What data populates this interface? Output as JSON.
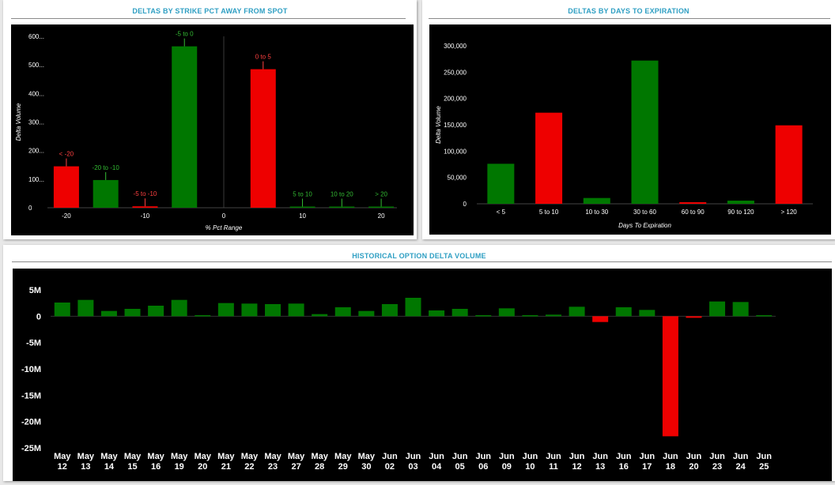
{
  "colors": {
    "positive": "#007700",
    "negative": "#ee0000",
    "title": "#2f9fc3",
    "background": "#000000",
    "axis_text": "#ffffff"
  },
  "panels": {
    "strike": {
      "title": "DELTAS BY STRIKE PCT AWAY FROM SPOT"
    },
    "days": {
      "title": "DELTAS BY DAYS TO EXPIRATION"
    },
    "history": {
      "title": "HISTORICAL OPTION DELTA VOLUME"
    }
  },
  "chart_data": [
    {
      "id": "strike",
      "type": "bar",
      "title": "DELTAS BY STRIKE PCT AWAY FROM SPOT",
      "xlabel": "% Pct Range",
      "ylabel": "Delta Volume",
      "xlim": [
        -22,
        22
      ],
      "ylim": [
        0,
        600
      ],
      "yticks": [
        0,
        100,
        200,
        300,
        400,
        500,
        600
      ],
      "ytick_labels": [
        "0",
        "100...",
        "200...",
        "300...",
        "400...",
        "500...",
        "600..."
      ],
      "xticks": [
        -20,
        -10,
        0,
        10,
        20
      ],
      "zero_line": true,
      "bars": [
        {
          "label": "< -20",
          "x": -20,
          "value": 145,
          "sign": "negative"
        },
        {
          "label": "-20 to -10",
          "x": -15,
          "value": 97,
          "sign": "positive"
        },
        {
          "label": "-5 to -10",
          "x": -10,
          "value": 5,
          "sign": "negative"
        },
        {
          "label": "-5 to 0",
          "x": -5,
          "value": 565,
          "sign": "positive"
        },
        {
          "label": "0 to 5",
          "x": 5,
          "value": 485,
          "sign": "negative"
        },
        {
          "label": "5 to 10",
          "x": 10,
          "value": 3,
          "sign": "positive"
        },
        {
          "label": "10 to 20",
          "x": 15,
          "value": 4,
          "sign": "positive"
        },
        {
          "label": "> 20",
          "x": 20,
          "value": 4,
          "sign": "positive"
        }
      ]
    },
    {
      "id": "days",
      "type": "bar",
      "title": "DELTAS BY DAYS TO EXPIRATION",
      "xlabel": "Days To Expiration",
      "ylabel": "Delta Volume",
      "ylim": [
        0,
        300000
      ],
      "yticks": [
        0,
        50000,
        100000,
        150000,
        200000,
        250000,
        300000
      ],
      "ytick_labels": [
        "0",
        "50,000",
        "100,000",
        "150,000",
        "200,000",
        "250,000",
        "300,000"
      ],
      "categories": [
        "< 5",
        "5 to 10",
        "10 to 30",
        "30 to 60",
        "60 to 90",
        "90 to 120",
        "> 120"
      ],
      "values": [
        76000,
        173000,
        11000,
        272000,
        3000,
        6000,
        149000
      ],
      "signs": [
        "positive",
        "negative",
        "positive",
        "positive",
        "negative",
        "positive",
        "negative"
      ]
    },
    {
      "id": "history",
      "type": "bar",
      "title": "HISTORICAL OPTION DELTA VOLUME",
      "ylim": [
        -25,
        5
      ],
      "yticks": [
        5,
        0,
        -5,
        -10,
        -15,
        -20,
        -25
      ],
      "ytick_labels": [
        "5M",
        "0",
        "-5M",
        "-10M",
        "-15M",
        "-20M",
        "-25M"
      ],
      "value_unit": "M",
      "categories": [
        [
          "May",
          "12"
        ],
        [
          "May",
          "13"
        ],
        [
          "May",
          "14"
        ],
        [
          "May",
          "15"
        ],
        [
          "May",
          "16"
        ],
        [
          "May",
          "19"
        ],
        [
          "May",
          "20"
        ],
        [
          "May",
          "21"
        ],
        [
          "May",
          "22"
        ],
        [
          "May",
          "23"
        ],
        [
          "May",
          "27"
        ],
        [
          "May",
          "28"
        ],
        [
          "May",
          "29"
        ],
        [
          "May",
          "30"
        ],
        [
          "Jun",
          "02"
        ],
        [
          "Jun",
          "03"
        ],
        [
          "Jun",
          "04"
        ],
        [
          "Jun",
          "05"
        ],
        [
          "Jun",
          "06"
        ],
        [
          "Jun",
          "09"
        ],
        [
          "Jun",
          "10"
        ],
        [
          "Jun",
          "11"
        ],
        [
          "Jun",
          "12"
        ],
        [
          "Jun",
          "13"
        ],
        [
          "Jun",
          "16"
        ],
        [
          "Jun",
          "17"
        ],
        [
          "Jun",
          "18"
        ],
        [
          "Jun",
          "20"
        ],
        [
          "Jun",
          "23"
        ],
        [
          "Jun",
          "24"
        ],
        [
          "Jun",
          "25"
        ]
      ],
      "values": [
        2.6,
        3.1,
        1.0,
        1.4,
        2.0,
        3.1,
        0.2,
        2.5,
        2.4,
        2.3,
        2.4,
        0.4,
        1.7,
        1.0,
        2.3,
        3.5,
        1.1,
        1.4,
        0.2,
        1.5,
        0.2,
        0.3,
        1.8,
        -1.1,
        1.7,
        1.2,
        -22.8,
        -0.3,
        2.8,
        2.7,
        0.2
      ]
    }
  ]
}
